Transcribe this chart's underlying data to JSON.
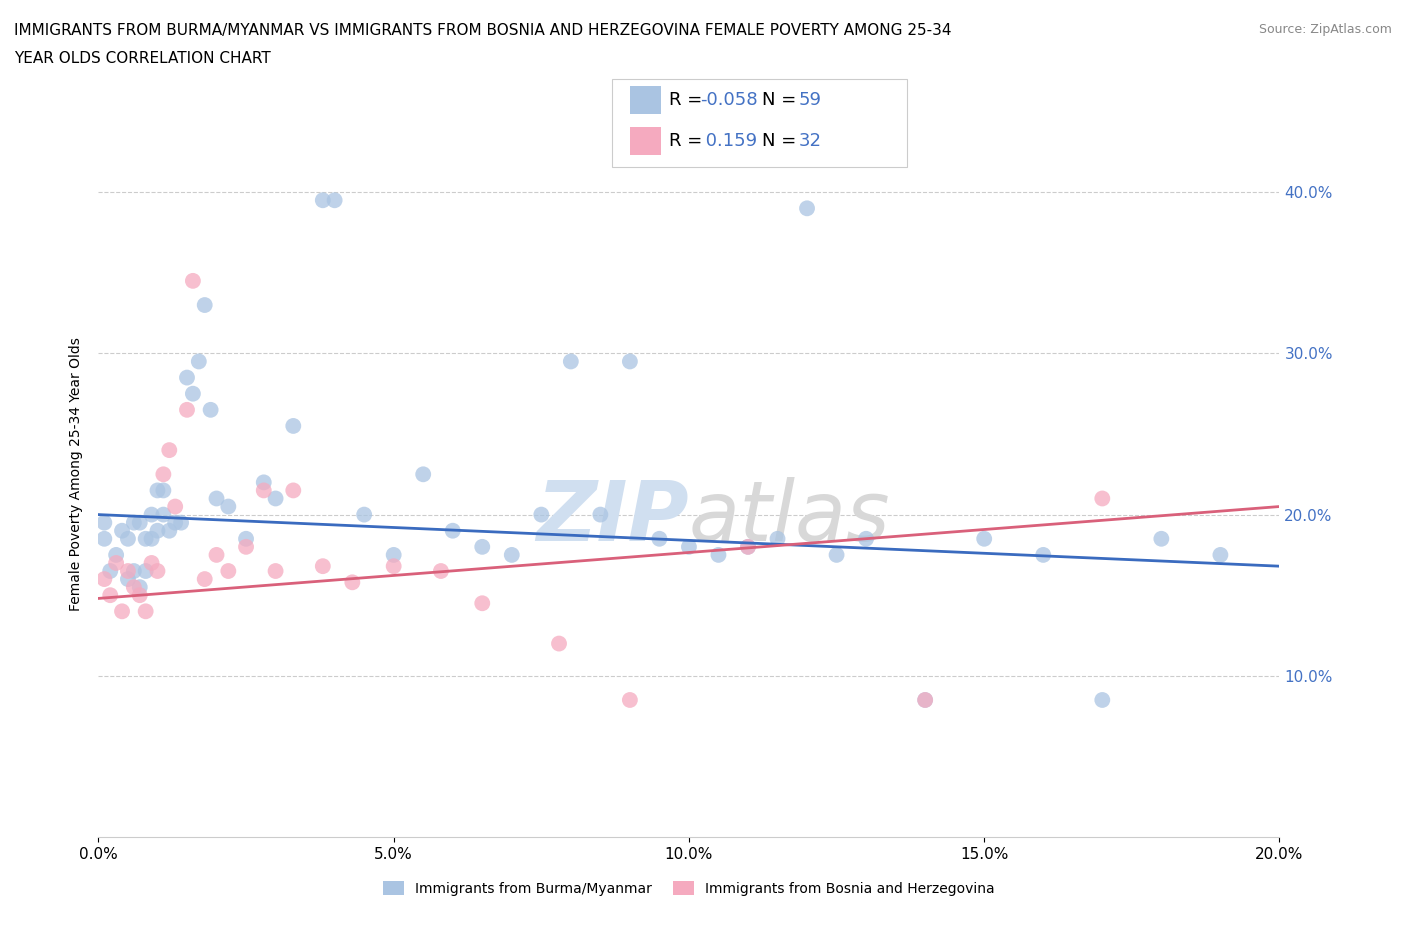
{
  "title_line1": "IMMIGRANTS FROM BURMA/MYANMAR VS IMMIGRANTS FROM BOSNIA AND HERZEGOVINA FEMALE POVERTY AMONG 25-34",
  "title_line2": "YEAR OLDS CORRELATION CHART",
  "source": "Source: ZipAtlas.com",
  "ylabel": "Female Poverty Among 25-34 Year Olds",
  "watermark_zip": "ZIP",
  "watermark_atlas": "atlas",
  "series1_label": "Immigrants from Burma/Myanmar",
  "series2_label": "Immigrants from Bosnia and Herzegovina",
  "series1_color": "#aac4e2",
  "series2_color": "#f5aabf",
  "series1_line_color": "#3a6bbf",
  "series2_line_color": "#d9607a",
  "legend_color": "#4472c4",
  "tick_label_color": "#4472c4",
  "R1": -0.058,
  "N1": 59,
  "R2": 0.159,
  "N2": 32,
  "xlim": [
    0.0,
    0.2
  ],
  "ylim": [
    0.0,
    0.45
  ],
  "xticks": [
    0.0,
    0.05,
    0.1,
    0.15,
    0.2
  ],
  "yticks": [
    0.1,
    0.2,
    0.3,
    0.4
  ],
  "xticklabels": [
    "0.0%",
    "5.0%",
    "10.0%",
    "15.0%",
    "20.0%"
  ],
  "yticklabels_right": [
    "10.0%",
    "20.0%",
    "30.0%",
    "40.0%"
  ],
  "series1_x": [
    0.001,
    0.001,
    0.002,
    0.003,
    0.004,
    0.005,
    0.005,
    0.006,
    0.006,
    0.007,
    0.007,
    0.008,
    0.008,
    0.009,
    0.009,
    0.01,
    0.01,
    0.011,
    0.011,
    0.012,
    0.013,
    0.014,
    0.015,
    0.016,
    0.017,
    0.018,
    0.019,
    0.02,
    0.022,
    0.025,
    0.028,
    0.03,
    0.033,
    0.038,
    0.04,
    0.045,
    0.05,
    0.055,
    0.06,
    0.065,
    0.07,
    0.075,
    0.08,
    0.085,
    0.09,
    0.095,
    0.1,
    0.105,
    0.11,
    0.115,
    0.12,
    0.125,
    0.13,
    0.14,
    0.15,
    0.16,
    0.17,
    0.18,
    0.19
  ],
  "series1_y": [
    0.195,
    0.185,
    0.165,
    0.175,
    0.19,
    0.185,
    0.16,
    0.195,
    0.165,
    0.155,
    0.195,
    0.185,
    0.165,
    0.2,
    0.185,
    0.215,
    0.19,
    0.215,
    0.2,
    0.19,
    0.195,
    0.195,
    0.285,
    0.275,
    0.295,
    0.33,
    0.265,
    0.21,
    0.205,
    0.185,
    0.22,
    0.21,
    0.255,
    0.395,
    0.395,
    0.2,
    0.175,
    0.225,
    0.19,
    0.18,
    0.175,
    0.2,
    0.295,
    0.2,
    0.295,
    0.185,
    0.18,
    0.175,
    0.18,
    0.185,
    0.39,
    0.175,
    0.185,
    0.085,
    0.185,
    0.175,
    0.085,
    0.185,
    0.175
  ],
  "series2_x": [
    0.001,
    0.002,
    0.003,
    0.004,
    0.005,
    0.006,
    0.007,
    0.008,
    0.009,
    0.01,
    0.011,
    0.012,
    0.013,
    0.015,
    0.016,
    0.018,
    0.02,
    0.022,
    0.025,
    0.028,
    0.03,
    0.033,
    0.038,
    0.043,
    0.05,
    0.058,
    0.065,
    0.078,
    0.09,
    0.11,
    0.14,
    0.17
  ],
  "series2_y": [
    0.16,
    0.15,
    0.17,
    0.14,
    0.165,
    0.155,
    0.15,
    0.14,
    0.17,
    0.165,
    0.225,
    0.24,
    0.205,
    0.265,
    0.345,
    0.16,
    0.175,
    0.165,
    0.18,
    0.215,
    0.165,
    0.215,
    0.168,
    0.158,
    0.168,
    0.165,
    0.145,
    0.12,
    0.085,
    0.18,
    0.085,
    0.21
  ],
  "title_fontsize": 11,
  "axis_fontsize": 10,
  "tick_fontsize": 11,
  "legend_fontsize": 13,
  "source_fontsize": 9
}
